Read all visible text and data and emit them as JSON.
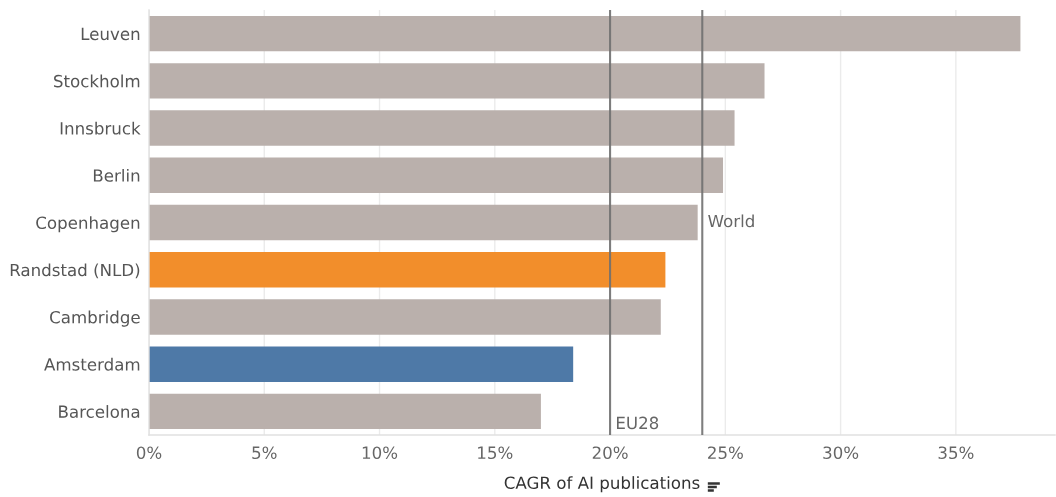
{
  "chart_data": {
    "type": "bar",
    "orientation": "horizontal",
    "xlabel": "CAGR of AI publications",
    "categories": [
      "Leuven",
      "Stockholm",
      "Innsbruck",
      "Berlin",
      "Copenhagen",
      "Randstad (NLD)",
      "Cambridge",
      "Amsterdam",
      "Barcelona"
    ],
    "values": [
      37.8,
      26.7,
      25.4,
      24.9,
      23.8,
      22.4,
      22.2,
      18.4,
      17.0
    ],
    "colors": [
      "#bab0ac",
      "#bab0ac",
      "#bab0ac",
      "#bab0ac",
      "#bab0ac",
      "#f28e2b",
      "#bab0ac",
      "#4e79a7",
      "#bab0ac"
    ],
    "xlim": [
      0,
      39.3
    ],
    "xticks": [
      {
        "value": 0,
        "label": "0%"
      },
      {
        "value": 5,
        "label": "5%"
      },
      {
        "value": 10,
        "label": "10%"
      },
      {
        "value": 15,
        "label": "15%"
      },
      {
        "value": 20,
        "label": "20%"
      },
      {
        "value": 25,
        "label": "25%"
      },
      {
        "value": 30,
        "label": "30%"
      },
      {
        "value": 35,
        "label": "35%"
      }
    ],
    "grid": "x",
    "ref_lines": [
      {
        "axis": "x",
        "value": 20,
        "label": "EU28",
        "color": "#707070"
      },
      {
        "axis": "x",
        "value": 24,
        "label": "World",
        "color": "#707070"
      }
    ]
  }
}
